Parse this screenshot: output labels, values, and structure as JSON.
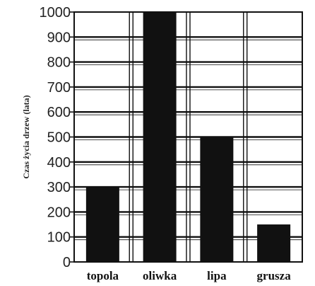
{
  "chart_data": {
    "type": "bar",
    "title": "",
    "xlabel": "",
    "ylabel": "Czas życia drzew (lata)",
    "categories": [
      "topola",
      "oliwka",
      "lipa",
      "grusza"
    ],
    "values": [
      300,
      1000,
      500,
      150
    ],
    "ylim": [
      0,
      1000
    ],
    "yticks": [
      0,
      100,
      200,
      300,
      400,
      500,
      600,
      700,
      800,
      900,
      1000
    ],
    "grid": "horizontal and vertical",
    "bar_color": "#111111",
    "grid_color": "#111111"
  }
}
